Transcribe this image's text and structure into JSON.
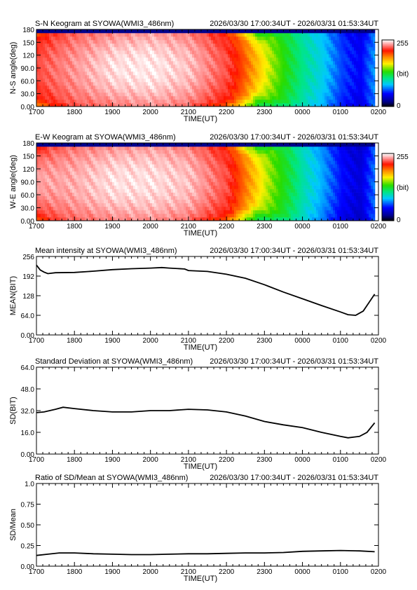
{
  "figure": {
    "station": "SYOWA",
    "camera": "WMI3_486nm",
    "time_range": "2026/03/30 17:00:34UT - 2026/03/31 01:53:34UT"
  },
  "chart_data": [
    {
      "type": "heatmap",
      "title": "S-N Keogram at SYOWA(WMI3_486nm)",
      "subtitle": "2026/03/30 17:00:34UT - 2026/03/31 01:53:34UT",
      "xlabel": "TIME(UT)",
      "ylabel": "N-S angle(deg)",
      "x_ticks": [
        "1700",
        "1800",
        "1900",
        "2000",
        "2100",
        "2200",
        "2300",
        "0000",
        "0100",
        "0200"
      ],
      "y_ticks": [
        "0.00",
        "30.0",
        "60.0",
        "90.0",
        "120",
        "150",
        "180"
      ],
      "xlim_hours": [
        17,
        26
      ],
      "ylim": [
        0,
        180
      ],
      "colorbar": {
        "min_label": "0",
        "max_label": "255",
        "unit_label": "(bit)",
        "range": [
          0,
          255
        ]
      },
      "profile_time_hours": [
        17.0,
        17.5,
        18.0,
        19.0,
        20.0,
        21.0,
        22.0,
        22.4,
        22.8,
        23.2,
        23.6,
        24.0,
        24.5,
        25.0,
        25.5,
        25.9
      ],
      "profile_edge_value": [
        215,
        222,
        228,
        232,
        236,
        232,
        215,
        195,
        165,
        140,
        120,
        100,
        82,
        55,
        42,
        70
      ],
      "profile_center_value": [
        225,
        232,
        238,
        250,
        252,
        245,
        225,
        205,
        178,
        150,
        128,
        108,
        90,
        62,
        48,
        78
      ],
      "band_half_width_deg": [
        70,
        80,
        85,
        88,
        90,
        85,
        75,
        65,
        55,
        70,
        80,
        85,
        85,
        85,
        85,
        85
      ]
    },
    {
      "type": "heatmap",
      "title": "E-W Keogram at SYOWA(WMI3_486nm)",
      "subtitle": "2026/03/30 17:00:34UT - 2026/03/31 01:53:34UT",
      "xlabel": "TIME(UT)",
      "ylabel": "W-E angle(deg)",
      "x_ticks": [
        "1700",
        "1800",
        "1900",
        "2000",
        "2100",
        "2200",
        "2300",
        "0000",
        "0100",
        "0200"
      ],
      "y_ticks": [
        "0.00",
        "30.0",
        "60.0",
        "90.0",
        "120",
        "150",
        "180"
      ],
      "xlim_hours": [
        17,
        26
      ],
      "ylim": [
        0,
        180
      ],
      "colorbar": {
        "min_label": "0",
        "max_label": "255",
        "unit_label": "(bit)",
        "range": [
          0,
          255
        ]
      },
      "profile_time_hours": [
        17.0,
        17.5,
        18.0,
        19.0,
        20.0,
        21.0,
        22.0,
        22.4,
        22.8,
        23.2,
        23.6,
        24.0,
        24.5,
        25.0,
        25.5,
        25.9
      ],
      "profile_edge_value": [
        218,
        225,
        230,
        234,
        236,
        232,
        215,
        192,
        162,
        138,
        118,
        95,
        72,
        45,
        35,
        65
      ],
      "profile_center_value": [
        240,
        240,
        242,
        250,
        250,
        245,
        225,
        200,
        172,
        145,
        125,
        102,
        80,
        52,
        40,
        72
      ],
      "band_half_width_deg": [
        75,
        85,
        88,
        90,
        90,
        85,
        75,
        60,
        55,
        70,
        80,
        85,
        85,
        85,
        85,
        85
      ]
    },
    {
      "type": "line",
      "title": "Mean intensity at SYOWA(WMI3_486nm)",
      "subtitle": "2026/03/30 17:00:34UT - 2026/03/31 01:53:34UT",
      "xlabel": "TIME(UT)",
      "ylabel": "MEAN(BIT)",
      "x_ticks": [
        "1700",
        "1800",
        "1900",
        "2000",
        "2100",
        "2200",
        "2300",
        "0000",
        "0100",
        "0200"
      ],
      "y_ticks": [
        "0.00",
        "64.0",
        "128",
        "192",
        "256"
      ],
      "xlim_hours": [
        17,
        26
      ],
      "ylim": [
        0,
        256
      ],
      "x_hours": [
        17.0,
        17.1,
        17.2,
        17.3,
        17.5,
        18.0,
        18.5,
        19.0,
        19.5,
        20.0,
        20.3,
        20.5,
        20.9,
        21.0,
        21.5,
        22.0,
        22.5,
        23.0,
        23.5,
        24.0,
        24.5,
        25.0,
        25.2,
        25.4,
        25.6,
        25.9
      ],
      "y": [
        228,
        212,
        205,
        200,
        203,
        204,
        208,
        213,
        216,
        218,
        220,
        218,
        215,
        210,
        207,
        198,
        185,
        164,
        140,
        118,
        96,
        75,
        66,
        64,
        78,
        133
      ]
    },
    {
      "type": "line",
      "title": "Standard Deviation at SYOWA(WMI3_486nm)",
      "subtitle": "2026/03/30 17:00:34UT - 2026/03/31 01:53:34UT",
      "xlabel": "TIME(UT)",
      "ylabel": "SD(BIT)",
      "x_ticks": [
        "1700",
        "1800",
        "1900",
        "2000",
        "2100",
        "2200",
        "2300",
        "0000",
        "0100",
        "0200"
      ],
      "y_ticks": [
        "0.00",
        "16.0",
        "32.0",
        "48.0",
        "64.0"
      ],
      "xlim_hours": [
        17,
        26
      ],
      "ylim": [
        0,
        64
      ],
      "x_hours": [
        17.0,
        17.2,
        17.5,
        17.7,
        18.0,
        18.5,
        19.0,
        19.5,
        20.0,
        20.5,
        21.0,
        21.5,
        22.0,
        22.5,
        23.0,
        23.5,
        24.0,
        24.5,
        25.0,
        25.2,
        25.5,
        25.7,
        25.9
      ],
      "y": [
        30.5,
        31.0,
        33.0,
        34.5,
        33.5,
        32.0,
        31.0,
        31.0,
        32.0,
        32.0,
        33.0,
        32.5,
        31.0,
        28.0,
        24.0,
        21.5,
        19.5,
        16.0,
        13.0,
        12.0,
        13.0,
        16.0,
        23.0
      ]
    },
    {
      "type": "line",
      "title": "Ratio of SD/Mean at SYOWA(WMI3_486nm)",
      "subtitle": "2026/03/30 17:00:34UT - 2026/03/31 01:53:34UT",
      "xlabel": "TIME(UT)",
      "ylabel": "SD/Mean",
      "x_ticks": [
        "1700",
        "1800",
        "1900",
        "2000",
        "2100",
        "2200",
        "2300",
        "0000",
        "0100",
        "0200"
      ],
      "y_ticks": [
        "0.00",
        "0.25",
        "0.50",
        "0.75",
        "1.0"
      ],
      "xlim_hours": [
        17,
        26
      ],
      "ylim": [
        0,
        1.0
      ],
      "x_hours": [
        17.0,
        17.3,
        17.6,
        18.0,
        18.5,
        19.0,
        19.5,
        20.0,
        20.5,
        21.0,
        21.5,
        22.0,
        22.5,
        23.0,
        23.5,
        24.0,
        24.5,
        25.0,
        25.5,
        25.9
      ],
      "y": [
        0.13,
        0.145,
        0.16,
        0.16,
        0.15,
        0.145,
        0.14,
        0.14,
        0.145,
        0.15,
        0.15,
        0.155,
        0.16,
        0.16,
        0.165,
        0.18,
        0.185,
        0.19,
        0.185,
        0.175
      ]
    }
  ]
}
